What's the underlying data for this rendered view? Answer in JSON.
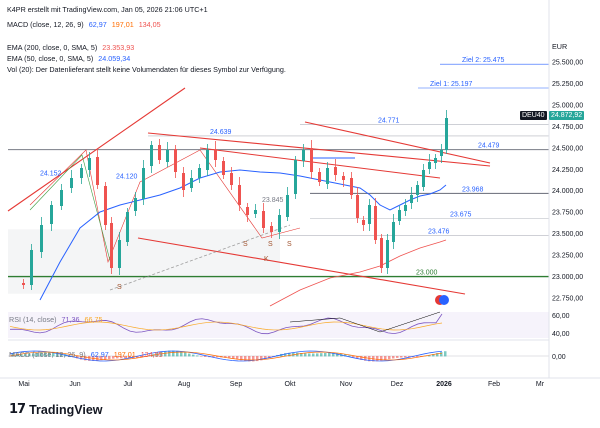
{
  "header": {
    "author_line": "K4PR erstellt mit TradingView.com, Jan 05, 2026 21:06 UTC+1",
    "macd_label": "MACD (close, 12, 26, 9)",
    "macd_values": [
      "62,97",
      "197,01",
      "134,05"
    ],
    "ema200_label": "EMA (200, close, 0, SMA, 5)",
    "ema200_value": "23.353,93",
    "ema50_label": "EMA (50, close, 0, SMA, 5)",
    "ema50_value": "24.059,34",
    "vol_line": "Vol (20): Der Datenlieferant stellt keine Volumendaten für dieses Symbol zur Verfügung."
  },
  "currency": "EUR",
  "symbol_tag": "DEU40",
  "last_price": "24.872,92",
  "rsi_label": "RSI (14, close)",
  "rsi_values": [
    "71,36",
    "66,75"
  ],
  "macd_pane_label": "MACD (close, 12, 26, 9)",
  "macd_pane_values": [
    "62,97",
    "197,01",
    "134,05"
  ],
  "colors": {
    "up": "#26a69a",
    "down": "#ef5350",
    "ema200": "#ef5350",
    "ema50": "#2962ff",
    "trend_red": "#e53935",
    "level_gray": "#787b86",
    "support_green": "#2e7d32",
    "target_blue": "#2962ff"
  },
  "brand": "TradingView",
  "chart_data": {
    "type": "candlestick",
    "y_axis": {
      "ticks": [
        "25.500,00",
        "25.250,00",
        "25.000,00",
        "24.750,00",
        "24.500,00",
        "24.250,00",
        "24.000,00",
        "23.750,00",
        "23.500,00",
        "23.250,00",
        "23.000,00",
        "22.750,00"
      ],
      "range": [
        22700,
        25650
      ]
    },
    "x_axis": {
      "labels": [
        "Mai",
        "Jun",
        "Jul",
        "Aug",
        "Sep",
        "Okt",
        "Nov",
        "Dez",
        "2026",
        "Feb",
        "Mr"
      ]
    },
    "level_labels": [
      {
        "text": "Ziel 2: 25.475",
        "value": 25475
      },
      {
        "text": "Ziel 1: 25.197",
        "value": 25197
      },
      {
        "text": "24.771",
        "value": 24771
      },
      {
        "text": "24.639",
        "value": 24639
      },
      {
        "text": "24.479",
        "value": 24479
      },
      {
        "text": "24.152",
        "value": 24152
      },
      {
        "text": "24.120",
        "value": 24120
      },
      {
        "text": "23.968",
        "value": 23968
      },
      {
        "text": "23.845",
        "value": 23845
      },
      {
        "text": "23.675",
        "value": 23675
      },
      {
        "text": "23.476",
        "value": 23476
      },
      {
        "text": "23.000",
        "value": 23000
      }
    ],
    "rsi_axis": [
      "60,00",
      "40,00"
    ],
    "macd_axis": [
      "0,00"
    ],
    "pattern_marks": [
      "S",
      "S",
      "S",
      "S",
      "K"
    ]
  }
}
